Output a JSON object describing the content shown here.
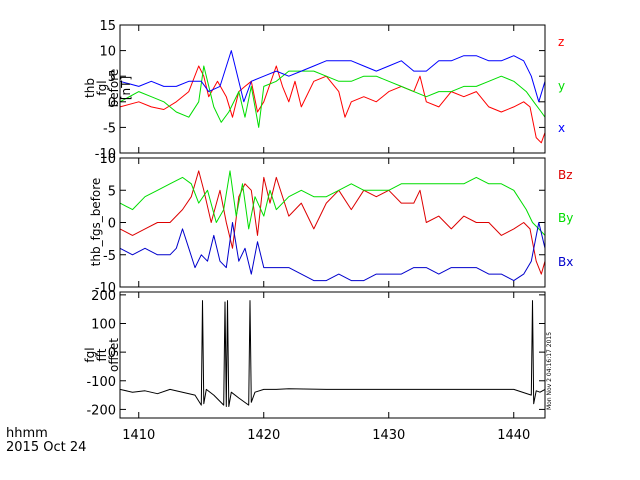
{
  "chart_data": [
    {
      "type": "line",
      "panel": "fgl-before",
      "ylabel_lines": [
        "thb",
        "fgl",
        "before",
        "[nT]"
      ],
      "ylim": [
        -10,
        15
      ],
      "yticks": [
        -10,
        -5,
        0,
        5,
        10,
        15
      ],
      "xlim": [
        1408.5,
        1442.5
      ],
      "series": [
        {
          "name": "z",
          "color": "#ff0000",
          "x": [
            1408.5,
            1410,
            1411,
            1412,
            1413,
            1414,
            1414.8,
            1415.2,
            1415.6,
            1416.3,
            1417,
            1417.5,
            1418,
            1418.5,
            1419,
            1419.5,
            1420,
            1421,
            1421.5,
            1422,
            1422.5,
            1423,
            1424,
            1425,
            1426,
            1426.5,
            1427,
            1428,
            1429,
            1430,
            1431,
            1432,
            1432.5,
            1433,
            1434,
            1435,
            1436,
            1437,
            1438,
            1439,
            1440,
            1440.8,
            1441.3,
            1441.8,
            1442.2,
            1442.5
          ],
          "y": [
            -1,
            0,
            -1,
            -1.5,
            0,
            2,
            7,
            5,
            1,
            4,
            1,
            -3,
            2,
            3,
            4,
            -2,
            0,
            7,
            3,
            0,
            4,
            -1,
            4,
            5,
            2,
            -3,
            0,
            1,
            0,
            2,
            3,
            2,
            5,
            0,
            -1,
            2,
            1,
            2,
            -1,
            -2,
            -1,
            0,
            -1,
            -7,
            -8,
            -6
          ]
        },
        {
          "name": "y",
          "color": "#00dd00",
          "x": [
            1408.5,
            1410,
            1411,
            1412,
            1413,
            1414,
            1414.8,
            1415.2,
            1416,
            1416.6,
            1417.2,
            1418,
            1418.5,
            1419,
            1419.6,
            1420,
            1421,
            1422,
            1423,
            1424,
            1425,
            1426,
            1427,
            1428,
            1429,
            1430,
            1431,
            1432,
            1433,
            1434,
            1435,
            1436,
            1437,
            1438,
            1439,
            1440,
            1441,
            1441.6,
            1442.2,
            1442.5
          ],
          "y": [
            0,
            2,
            1,
            0,
            -2,
            -3,
            0,
            7,
            -1,
            -4,
            -2,
            2,
            -3,
            3,
            -5,
            3,
            4,
            6,
            6,
            6,
            5,
            4,
            4,
            5,
            5,
            4,
            3,
            2,
            1,
            2,
            2,
            3,
            3,
            4,
            5,
            4,
            2,
            0,
            -2,
            -3
          ]
        },
        {
          "name": "x",
          "color": "#0000ff",
          "x": [
            1408.5,
            1410,
            1411,
            1412,
            1413,
            1414,
            1415,
            1415.6,
            1416.5,
            1417.4,
            1418,
            1418.4,
            1419,
            1420,
            1421,
            1422,
            1423,
            1424,
            1425,
            1426,
            1427,
            1428,
            1429,
            1430,
            1431,
            1432,
            1433,
            1434,
            1435,
            1436,
            1437,
            1438,
            1439,
            1440,
            1440.8,
            1441.4,
            1442,
            1442.5
          ],
          "y": [
            4,
            3,
            4,
            3,
            3,
            4,
            4,
            2,
            3,
            10,
            4,
            0,
            4,
            5,
            6,
            5,
            6,
            7,
            8,
            8,
            8,
            7,
            6,
            7,
            8,
            6,
            6,
            8,
            8,
            9,
            9,
            8,
            8,
            9,
            8,
            5,
            0,
            4
          ]
        }
      ],
      "legend": [
        "z",
        "y",
        "x"
      ]
    },
    {
      "type": "line",
      "panel": "fgs-before",
      "ylabel_lines": [
        "thb_fgs_before"
      ],
      "ylim": [
        -10,
        10
      ],
      "yticks": [
        -10,
        -5,
        0,
        5,
        10
      ],
      "xlim": [
        1408.5,
        1442.5
      ],
      "series": [
        {
          "name": "Bz",
          "color": "#dd0000",
          "x": [
            1408.5,
            1409.5,
            1410.5,
            1411.5,
            1412.5,
            1413.5,
            1414.2,
            1414.8,
            1415.2,
            1415.8,
            1416.5,
            1417,
            1417.5,
            1418,
            1418.5,
            1419,
            1419.5,
            1420,
            1420.5,
            1421,
            1422,
            1423,
            1424,
            1425,
            1426,
            1427,
            1428,
            1429,
            1430,
            1431,
            1432,
            1432.5,
            1433,
            1434,
            1435,
            1436,
            1437,
            1438,
            1439,
            1440,
            1440.8,
            1441.3,
            1441.8,
            1442.2,
            1442.5
          ],
          "y": [
            -1,
            -2,
            -1,
            0,
            0,
            2,
            4,
            8,
            5,
            0,
            5,
            0,
            -4,
            4,
            6,
            5,
            -2,
            7,
            3,
            7,
            1,
            3,
            -1,
            3,
            5,
            2,
            5,
            4,
            5,
            3,
            3,
            5,
            0,
            1,
            -1,
            1,
            0,
            0,
            -2,
            -1,
            0,
            -1,
            -6,
            -8,
            -6
          ]
        },
        {
          "name": "By",
          "color": "#00dd00",
          "x": [
            1408.5,
            1409.5,
            1410.5,
            1411.5,
            1412.5,
            1413.5,
            1414.2,
            1414.8,
            1415.5,
            1416.2,
            1416.8,
            1417.3,
            1417.8,
            1418.3,
            1418.8,
            1419.3,
            1420,
            1420.5,
            1421,
            1422,
            1423,
            1424,
            1425,
            1426,
            1427,
            1428,
            1429,
            1430,
            1431,
            1432,
            1433,
            1434,
            1435,
            1436,
            1437,
            1438,
            1439,
            1440,
            1441,
            1441.5,
            1442,
            1442.5
          ],
          "y": [
            3,
            2,
            4,
            5,
            6,
            7,
            6,
            3,
            5,
            0,
            2,
            8,
            1,
            6,
            -1,
            4,
            1,
            5,
            2,
            4,
            5,
            4,
            4,
            5,
            6,
            5,
            5,
            5,
            6,
            6,
            6,
            6,
            6,
            6,
            7,
            6,
            6,
            5,
            2,
            0,
            -1,
            -2
          ]
        },
        {
          "name": "Bx",
          "color": "#0000cc",
          "x": [
            1408.5,
            1409.5,
            1410.5,
            1411.5,
            1412.5,
            1413,
            1413.5,
            1414,
            1414.5,
            1415,
            1415.5,
            1416,
            1416.5,
            1417,
            1417.5,
            1418,
            1418.5,
            1419,
            1419.5,
            1420,
            1421,
            1422,
            1423,
            1424,
            1425,
            1426,
            1427,
            1428,
            1429,
            1430,
            1431,
            1432,
            1433,
            1434,
            1435,
            1436,
            1437,
            1438,
            1439,
            1440,
            1440.8,
            1441.4,
            1442,
            1442.5
          ],
          "y": [
            -4,
            -5,
            -4,
            -5,
            -5,
            -4,
            -1,
            -4,
            -7,
            -5,
            -6,
            -2,
            -6,
            -7,
            0,
            -6,
            -4,
            -8,
            -3,
            -7,
            -7,
            -7,
            -8,
            -9,
            -9,
            -8,
            -9,
            -9,
            -8,
            -8,
            -8,
            -7,
            -7,
            -8,
            -7,
            -7,
            -7,
            -8,
            -8,
            -9,
            -8,
            -6,
            0,
            -4
          ]
        }
      ],
      "legend": [
        "Bz",
        "By",
        "Bx"
      ]
    },
    {
      "type": "line",
      "panel": "offset",
      "ylabel_lines": [
        "fgl",
        "fft",
        "offset"
      ],
      "ylim": [
        -230,
        210
      ],
      "yticks": [
        -200,
        -100,
        0,
        100,
        200
      ],
      "xlim": [
        1408.5,
        1442.5
      ],
      "series": [
        {
          "name": "offset",
          "color": "#000000",
          "x": [
            1408.5,
            1409.5,
            1410.5,
            1411.5,
            1412.5,
            1413.5,
            1414.5,
            1415,
            1415.1,
            1415.2,
            1415.4,
            1416,
            1416.8,
            1416.9,
            1417,
            1417.1,
            1417.2,
            1417.4,
            1418,
            1418.8,
            1418.9,
            1419,
            1419.3,
            1420,
            1421,
            1422,
            1425,
            1430,
            1435,
            1440,
            1441.4,
            1441.5,
            1441.6,
            1441.8,
            1442.1,
            1442.5
          ],
          "y": [
            -130,
            -140,
            -135,
            -145,
            -130,
            -140,
            -150,
            -185,
            180,
            -180,
            -130,
            -150,
            -185,
            175,
            -190,
            180,
            -190,
            -140,
            -160,
            -185,
            180,
            -175,
            -140,
            -130,
            -130,
            -128,
            -130,
            -130,
            -130,
            -130,
            -150,
            180,
            -180,
            -135,
            -140,
            -130
          ]
        }
      ],
      "legend": []
    }
  ],
  "xticks": [
    1410,
    1420,
    1430,
    1440
  ],
  "footer": {
    "xaxis_label_1": "hhmm",
    "xaxis_label_2": "2015 Oct 24",
    "timestamp": "Mon Nov  2 04:16:17 2015"
  },
  "colors": {
    "frame": "#000000",
    "background": "#ffffff"
  }
}
